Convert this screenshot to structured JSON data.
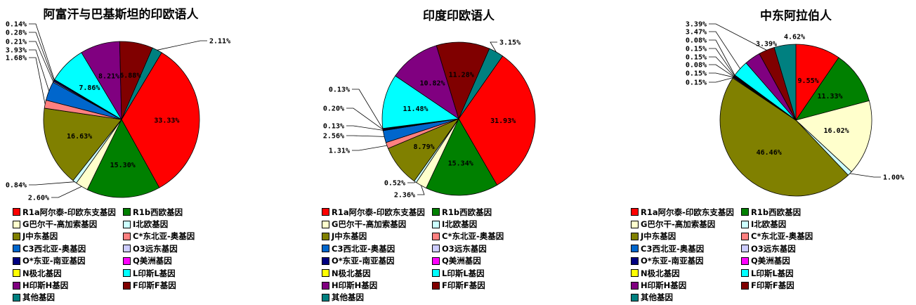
{
  "legend": [
    {
      "label": "R1a阿尔泰-印欧东支基因",
      "color": "#ff0000"
    },
    {
      "label": "R1b西欧基因",
      "color": "#008000"
    },
    {
      "label": "G巴尔干-高加索基因",
      "color": "#ffffcc"
    },
    {
      "label": "I北欧基因",
      "color": "#ccffff"
    },
    {
      "label": "J中东基因",
      "color": "#808000"
    },
    {
      "label": "C*东北亚-奥基因",
      "color": "#ff8080"
    },
    {
      "label": "C3西北亚-奥基因",
      "color": "#0066cc"
    },
    {
      "label": "O3远东基因",
      "color": "#ccccff"
    },
    {
      "label": "O*东亚-南亚基因",
      "color": "#000080"
    },
    {
      "label": "Q美洲基因",
      "color": "#ff00ff"
    },
    {
      "label": "N极北基因",
      "color": "#ffff00"
    },
    {
      "label": "L印斯L基因",
      "color": "#00ffff"
    },
    {
      "label": "H印斯H基因",
      "color": "#800080"
    },
    {
      "label": "F印斯F基因",
      "color": "#800000"
    },
    {
      "label": "其他基因",
      "color": "#008080"
    }
  ],
  "chart_data": [
    {
      "type": "pie",
      "title": "阿富汗与巴基斯坦的印欧语人",
      "values": [
        33.33,
        15.3,
        2.6,
        0.84,
        16.63,
        1.68,
        3.93,
        0.21,
        0.28,
        0.14,
        0,
        7.86,
        8.21,
        6.88,
        2.11
      ],
      "labels": [
        "33.33%",
        "15.30%",
        "2.60%",
        "0.84%",
        "16.63%",
        "1.68%",
        "3.93%",
        "0.21%",
        "0.28%",
        "0.14%",
        "",
        "7.86%",
        "8.21%",
        "6.88%",
        "2.11%"
      ]
    },
    {
      "type": "pie",
      "title": "印度印欧语人",
      "values": [
        31.93,
        15.34,
        2.36,
        0.52,
        8.79,
        1.31,
        2.56,
        0.13,
        0.2,
        0.13,
        0,
        11.48,
        10.82,
        11.28,
        3.15
      ],
      "labels": [
        "31.93%",
        "15.34%",
        "2.36%",
        "0.52%",
        "8.79%",
        "1.31%",
        "2.56%",
        "0.13%",
        "0.20%",
        "0.13%",
        "",
        "11.48%",
        "10.82%",
        "11.28%",
        "3.15%"
      ]
    },
    {
      "type": "pie",
      "title": "中东阿拉伯人",
      "values": [
        9.55,
        11.33,
        16.02,
        1.0,
        46.46,
        0.15,
        0.15,
        0.08,
        0.15,
        0.15,
        0.08,
        3.47,
        3.39,
        3.39,
        4.62
      ],
      "labels": [
        "9.55%",
        "11.33%",
        "16.02%",
        "1.00%",
        "46.46%",
        "0.15%",
        "0.15%",
        "0.08%",
        "0.15%",
        "0.15%",
        "0.08%",
        "3.47%",
        "3.39%",
        "3.39%",
        "4.62%"
      ]
    }
  ]
}
